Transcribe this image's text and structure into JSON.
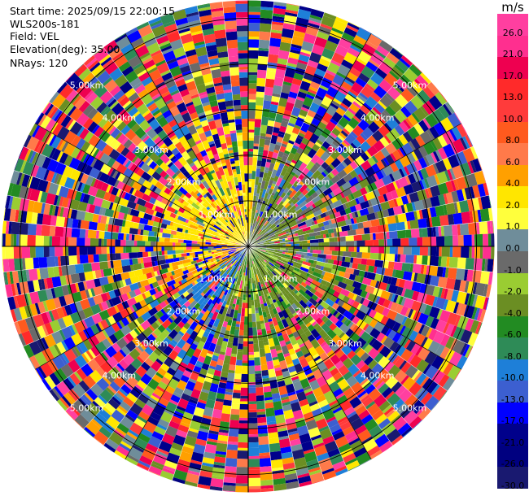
{
  "header": {
    "start_time": "Start time: 2025/09/15 22:00:15",
    "instrument": "WLS200s-181",
    "field": "Field: VEL",
    "elevation": "Elevation(deg): 35.00",
    "nrays": "NRays: 120"
  },
  "chart_data": {
    "type": "heatmap",
    "subtype": "ppi-polar",
    "field": "VEL",
    "unit": "m/s",
    "n_rays": 120,
    "elevation_deg": 35.0,
    "range_ring_labels": [
      "1.00km",
      "2.00km",
      "3.00km",
      "4.00km",
      "5.00km"
    ],
    "range_ring_km": [
      1,
      2,
      3,
      4,
      5
    ],
    "max_range_km": 5.4,
    "colorbar": {
      "label": "m/s",
      "ticks": [
        "26.0",
        "21.0",
        "17.0",
        "13.0",
        "10.0",
        "8.0",
        "6.0",
        "4.0",
        "2.0",
        "1.0",
        "0.0",
        "-1.0",
        "-2.0",
        "-4.0",
        "-6.0",
        "-8.0",
        "-10.0",
        "-13.0",
        "-17.0",
        "-21.0",
        "-26.0",
        "-30.0"
      ],
      "colors": [
        "#ff3fa0",
        "#ff2f8f",
        "#ee0050",
        "#ff2a2a",
        "#ff3b3b",
        "#ff5a1e",
        "#ff7a4a",
        "#ffa000",
        "#ffe600",
        "#ffff3c",
        "#6f8d9a",
        "#6a6a6a",
        "#9acd32",
        "#6b8e23",
        "#228b22",
        "#2e8b57",
        "#1e7fd8",
        "#3c5fd0",
        "#0000ff",
        "#00008b",
        "#000080",
        "#191970"
      ]
    }
  }
}
